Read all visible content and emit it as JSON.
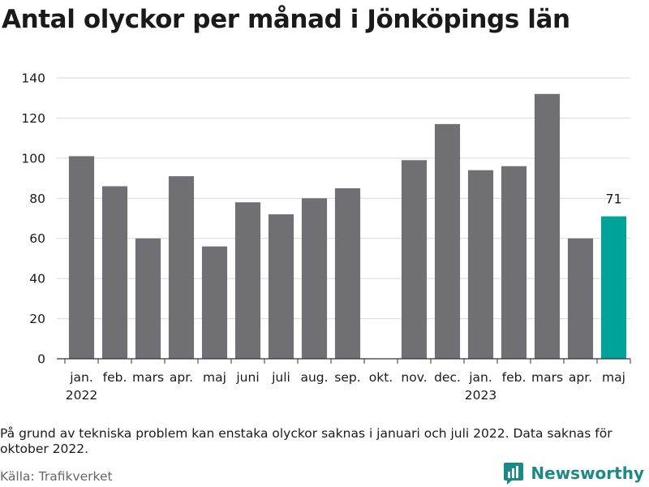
{
  "title": "Antal olyckor per månad i Jönköpings län",
  "note": "På grund av tekniska problem kan enstaka olyckor saknas i januari och juli 2022. Data saknas för oktober 2022.",
  "source": "Källa: Trafikverket",
  "brand": {
    "name": "Newsworthy",
    "icon": "bar-chart-logo-icon"
  },
  "colors": {
    "bar": "#707074",
    "highlight": "#00a39a",
    "grid": "#d9d9d9",
    "axis": "#333333"
  },
  "chart_data": {
    "type": "bar",
    "title": "Antal olyckor per månad i Jönköpings län",
    "xlabel": "",
    "ylabel": "",
    "ylim": [
      0,
      140
    ],
    "yticks": [
      0,
      20,
      40,
      60,
      80,
      100,
      120,
      140
    ],
    "grid": true,
    "categories": [
      "jan.",
      "feb.",
      "mars",
      "apr.",
      "maj",
      "juni",
      "juli",
      "aug.",
      "sep.",
      "okt.",
      "nov.",
      "dec.",
      "jan.",
      "feb.",
      "mars",
      "apr.",
      "maj"
    ],
    "years": [
      {
        "label": "2022",
        "index": 0
      },
      {
        "label": "2023",
        "index": 12
      }
    ],
    "values": [
      101,
      86,
      60,
      91,
      56,
      78,
      72,
      80,
      85,
      null,
      99,
      117,
      94,
      96,
      132,
      60,
      71
    ],
    "highlight_index": 16,
    "data_labels": [
      {
        "index": 16,
        "text": "71"
      }
    ]
  }
}
